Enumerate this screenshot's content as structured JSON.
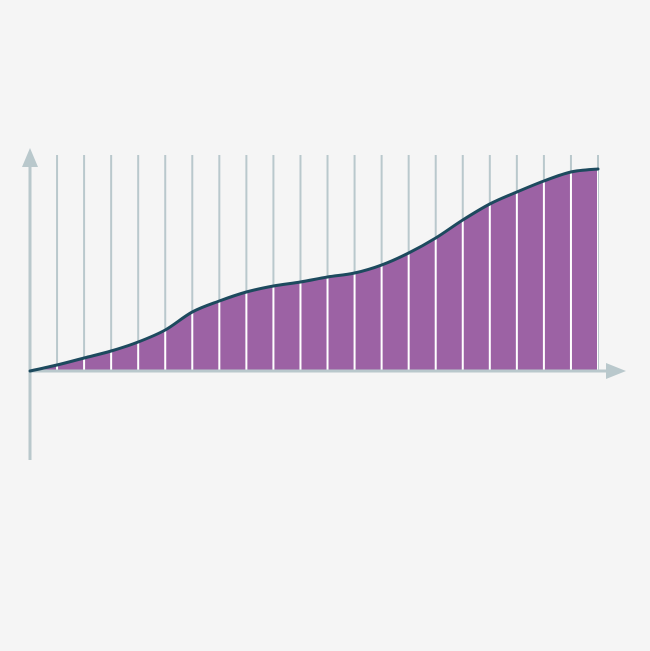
{
  "chart_data": {
    "type": "area",
    "title": "",
    "xlabel": "",
    "ylabel": "",
    "x": [
      0,
      1,
      2,
      3,
      4,
      5,
      6,
      7,
      8,
      9,
      10,
      11,
      12,
      13,
      14,
      15,
      16,
      17,
      18,
      19,
      20,
      21
    ],
    "values": [
      0,
      6,
      13,
      20,
      29,
      41,
      59,
      70,
      79,
      85,
      89,
      94,
      98,
      106,
      118,
      133,
      151,
      167,
      179,
      190,
      199,
      202
    ],
    "xlim": [
      0,
      21
    ],
    "ylim": [
      -90,
      216
    ],
    "grid": "vertical",
    "smooth": true,
    "colors": {
      "background": "#f5f5f5",
      "fill": "#9c62a4",
      "line": "#1d4a5e",
      "axis": "#b9c8cc",
      "grid": "#b9c8cc",
      "grid_inside_fill": "#ffffff"
    }
  }
}
